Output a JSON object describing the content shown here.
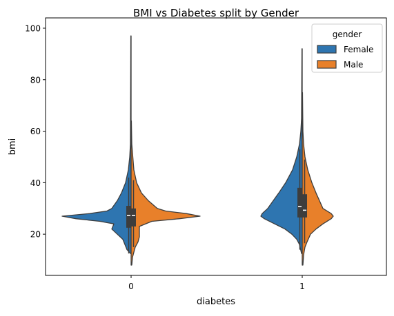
{
  "chart_data": {
    "type": "violin",
    "title": "BMI vs Diabetes split by Gender",
    "xlabel": "diabetes",
    "ylabel": "bmi",
    "categories": [
      "0",
      "1"
    ],
    "ylim": [
      4,
      104
    ],
    "yticks": [
      20,
      40,
      60,
      80,
      100
    ],
    "legend": {
      "title": "gender",
      "position": "top-right",
      "entries": [
        {
          "name": "Female",
          "color": "#1f77b4"
        },
        {
          "name": "Male",
          "color": "#ff7f0e"
        }
      ]
    },
    "split": true,
    "series": [
      {
        "name": "Female",
        "color": "#2e75b0",
        "violins": [
          {
            "category": "0",
            "min": 12.5,
            "max": 97,
            "profile": [
              [
                12.5,
                0.01
              ],
              [
                14,
                0.06
              ],
              [
                16,
                0.09
              ],
              [
                18,
                0.12
              ],
              [
                20,
                0.2
              ],
              [
                22,
                0.28
              ],
              [
                24,
                0.25
              ],
              [
                25,
                0.45
              ],
              [
                26,
                0.8
              ],
              [
                27,
                1.0
              ],
              [
                28,
                0.6
              ],
              [
                29,
                0.35
              ],
              [
                30,
                0.28
              ],
              [
                33,
                0.2
              ],
              [
                36,
                0.14
              ],
              [
                40,
                0.08
              ],
              [
                45,
                0.04
              ],
              [
                50,
                0.02
              ],
              [
                55,
                0.01
              ],
              [
                97,
                0.004
              ]
            ]
          },
          {
            "category": "1",
            "min": 12.5,
            "max": 92,
            "profile": [
              [
                12.5,
                0.01
              ],
              [
                16,
                0.04
              ],
              [
                18,
                0.08
              ],
              [
                20,
                0.15
              ],
              [
                22,
                0.25
              ],
              [
                24,
                0.4
              ],
              [
                26,
                0.55
              ],
              [
                27,
                0.6
              ],
              [
                28,
                0.58
              ],
              [
                30,
                0.5
              ],
              [
                33,
                0.42
              ],
              [
                36,
                0.34
              ],
              [
                40,
                0.24
              ],
              [
                45,
                0.14
              ],
              [
                50,
                0.08
              ],
              [
                55,
                0.04
              ],
              [
                60,
                0.02
              ],
              [
                65,
                0.01
              ],
              [
                92,
                0.004
              ]
            ]
          }
        ]
      },
      {
        "name": "Male",
        "color": "#e8802a",
        "violins": [
          {
            "category": "0",
            "min": 8,
            "max": 64,
            "profile": [
              [
                8,
                0.01
              ],
              [
                11,
                0.02
              ],
              [
                13,
                0.04
              ],
              [
                15,
                0.06
              ],
              [
                17,
                0.1
              ],
              [
                19,
                0.12
              ],
              [
                21,
                0.12
              ],
              [
                23,
                0.12
              ],
              [
                25,
                0.3
              ],
              [
                26,
                0.7
              ],
              [
                27,
                1.0
              ],
              [
                28,
                0.8
              ],
              [
                29,
                0.5
              ],
              [
                30,
                0.38
              ],
              [
                33,
                0.25
              ],
              [
                36,
                0.15
              ],
              [
                40,
                0.08
              ],
              [
                45,
                0.04
              ],
              [
                55,
                0.01
              ],
              [
                64,
                0.004
              ]
            ]
          },
          {
            "category": "1",
            "min": 8,
            "max": 75,
            "profile": [
              [
                8,
                0.01
              ],
              [
                12,
                0.02
              ],
              [
                15,
                0.04
              ],
              [
                17,
                0.07
              ],
              [
                20,
                0.12
              ],
              [
                22,
                0.2
              ],
              [
                24,
                0.3
              ],
              [
                26,
                0.42
              ],
              [
                27,
                0.45
              ],
              [
                28,
                0.42
              ],
              [
                30,
                0.3
              ],
              [
                33,
                0.25
              ],
              [
                36,
                0.2
              ],
              [
                40,
                0.14
              ],
              [
                45,
                0.08
              ],
              [
                50,
                0.04
              ],
              [
                55,
                0.02
              ],
              [
                60,
                0.01
              ],
              [
                75,
                0.004
              ]
            ]
          }
        ]
      }
    ],
    "boxes": [
      {
        "category": "0",
        "side": "Female",
        "q1": 22.5,
        "median": 27.3,
        "q3": 31,
        "wmin": 12.5,
        "wmax": 42
      },
      {
        "category": "0",
        "side": "Male",
        "q1": 23,
        "median": 27.3,
        "q3": 30,
        "wmin": 15,
        "wmax": 41
      },
      {
        "category": "1",
        "side": "Female",
        "q1": 26.5,
        "median": 30.8,
        "q3": 38,
        "wmin": 14,
        "wmax": 53
      },
      {
        "category": "1",
        "side": "Male",
        "q1": 26.5,
        "median": 29.3,
        "q3": 35.5,
        "wmin": 16.5,
        "wmax": 49
      }
    ]
  }
}
